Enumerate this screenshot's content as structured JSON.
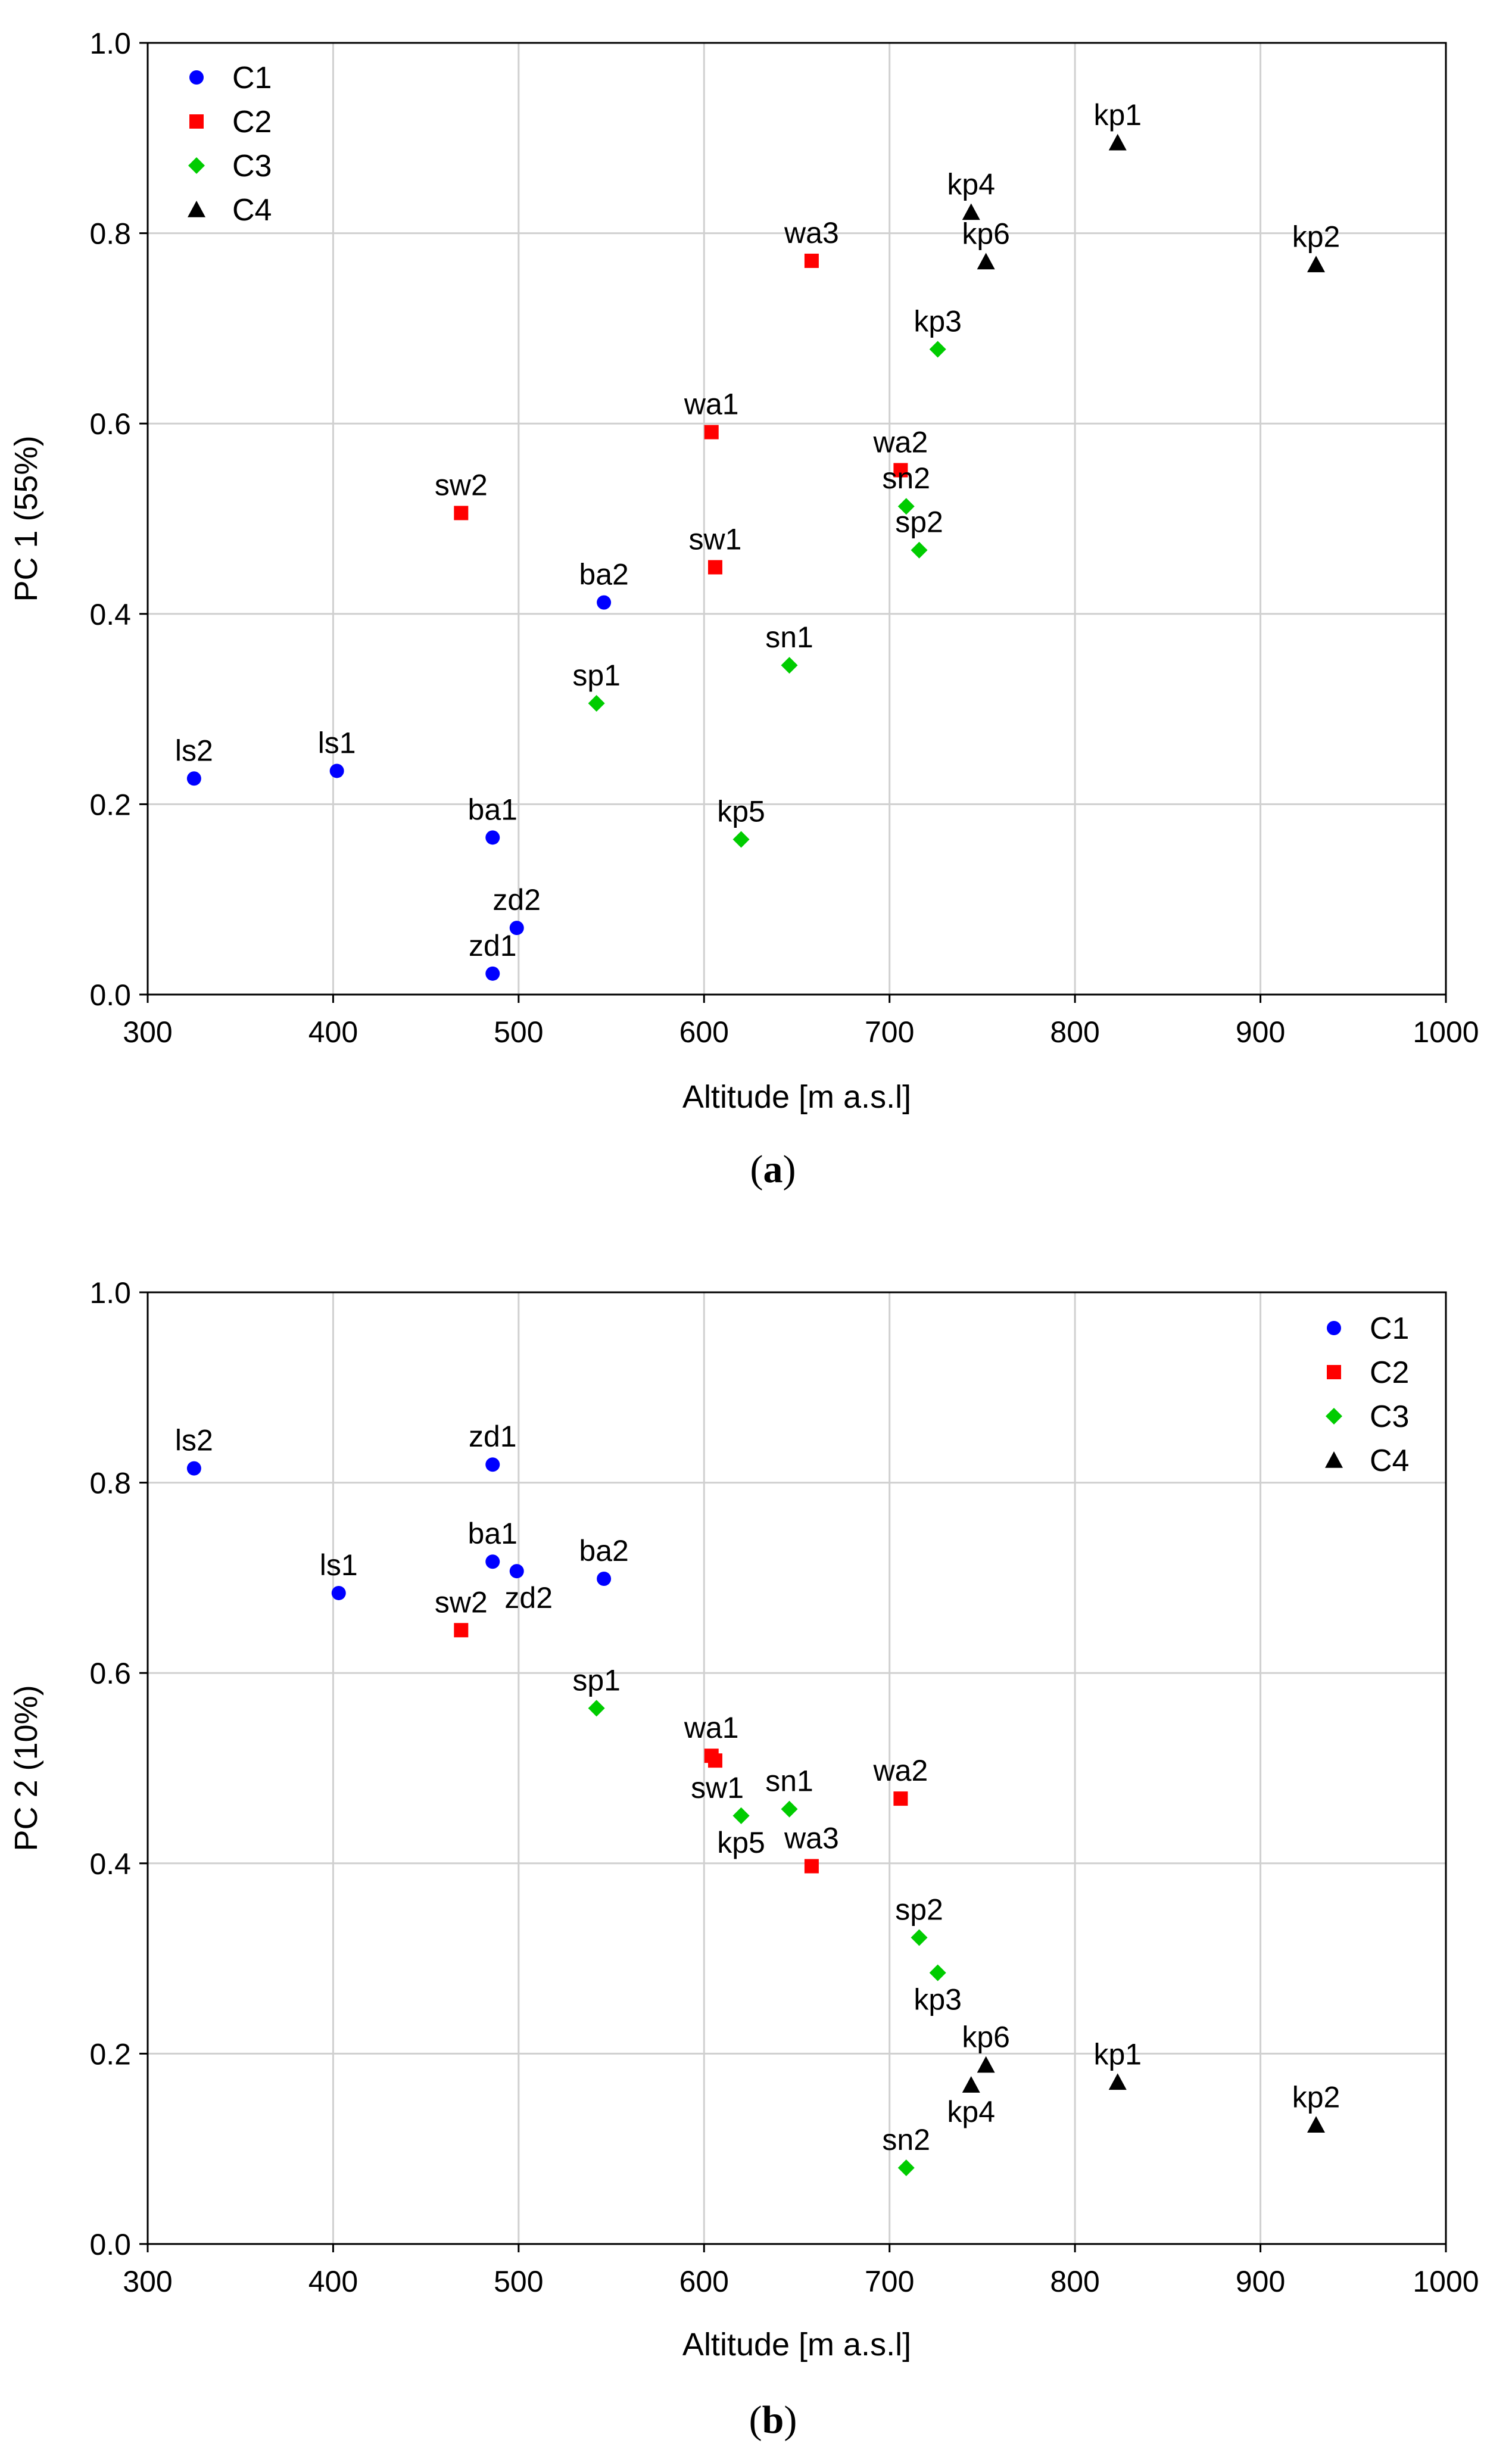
{
  "colors": {
    "C1": "#0000ff",
    "C2": "#ff0000",
    "C3": "#00cc00",
    "C4": "#000000",
    "grid": "#d0d0d0",
    "frame": "#000000"
  },
  "chart_data": [
    {
      "type": "scatter",
      "caption": "(a)",
      "caption_open": "(",
      "caption_letter": "a",
      "caption_close": ")",
      "xlabel": "Altitude [m a.s.l]",
      "ylabel": "PC 1 (55%)",
      "xlim": [
        300,
        1000
      ],
      "ylim": [
        0.0,
        1.0
      ],
      "xticks": [
        "300",
        "400",
        "500",
        "600",
        "700",
        "800",
        "900",
        "1000"
      ],
      "yticks": [
        "0.0",
        "0.2",
        "0.4",
        "0.6",
        "0.8",
        "1.0"
      ],
      "grid": true,
      "legend_position": "top-left",
      "legend": [
        "C1",
        "C2",
        "C3",
        "C4"
      ],
      "points": [
        {
          "label": "ls2",
          "x": 325,
          "y": 0.227,
          "group": "C1",
          "label_pos": "above"
        },
        {
          "label": "ls1",
          "x": 402,
          "y": 0.235,
          "group": "C1",
          "label_pos": "above"
        },
        {
          "label": "ba1",
          "x": 486,
          "y": 0.165,
          "group": "C1",
          "label_pos": "above"
        },
        {
          "label": "zd2",
          "x": 499,
          "y": 0.07,
          "group": "C1",
          "label_pos": "above"
        },
        {
          "label": "zd1",
          "x": 486,
          "y": 0.022,
          "group": "C1",
          "label_pos": "above"
        },
        {
          "label": "ba2",
          "x": 546,
          "y": 0.412,
          "group": "C1",
          "label_pos": "above"
        },
        {
          "label": "sw2",
          "x": 469,
          "y": 0.506,
          "group": "C2",
          "label_pos": "above"
        },
        {
          "label": "wa1",
          "x": 604,
          "y": 0.591,
          "group": "C2",
          "label_pos": "above"
        },
        {
          "label": "sw1",
          "x": 606,
          "y": 0.449,
          "group": "C2",
          "label_pos": "above"
        },
        {
          "label": "wa3",
          "x": 658,
          "y": 0.771,
          "group": "C2",
          "label_pos": "above"
        },
        {
          "label": "wa2",
          "x": 706,
          "y": 0.551,
          "group": "C2",
          "label_pos": "above"
        },
        {
          "label": "sp1",
          "x": 542,
          "y": 0.306,
          "group": "C3",
          "label_pos": "above"
        },
        {
          "label": "kp5",
          "x": 620,
          "y": 0.163,
          "group": "C3",
          "label_pos": "above"
        },
        {
          "label": "sn1",
          "x": 646,
          "y": 0.346,
          "group": "C3",
          "label_pos": "above"
        },
        {
          "label": "sn2",
          "x": 709,
          "y": 0.513,
          "group": "C3",
          "label_pos": "above"
        },
        {
          "label": "sp2",
          "x": 716,
          "y": 0.467,
          "group": "C3",
          "label_pos": "above"
        },
        {
          "label": "kp3",
          "x": 726,
          "y": 0.678,
          "group": "C3",
          "label_pos": "above"
        },
        {
          "label": "kp4",
          "x": 744,
          "y": 0.822,
          "group": "C4",
          "label_pos": "above"
        },
        {
          "label": "kp6",
          "x": 752,
          "y": 0.77,
          "group": "C4",
          "label_pos": "above"
        },
        {
          "label": "kp1",
          "x": 823,
          "y": 0.895,
          "group": "C4",
          "label_pos": "above"
        },
        {
          "label": "kp2",
          "x": 930,
          "y": 0.767,
          "group": "C4",
          "label_pos": "above"
        }
      ]
    },
    {
      "type": "scatter",
      "caption": "(b)",
      "caption_open": "(",
      "caption_letter": "b",
      "caption_close": ")",
      "xlabel": "Altitude [m a.s.l]",
      "ylabel": "PC 2 (10%)",
      "xlim": [
        300,
        1000
      ],
      "ylim": [
        0.0,
        1.0
      ],
      "xticks": [
        "300",
        "400",
        "500",
        "600",
        "700",
        "800",
        "900",
        "1000"
      ],
      "yticks": [
        "0.0",
        "0.2",
        "0.4",
        "0.6",
        "0.8",
        "1.0"
      ],
      "grid": true,
      "legend_position": "top-right",
      "legend": [
        "C1",
        "C2",
        "C3",
        "C4"
      ],
      "points": [
        {
          "label": "ls2",
          "x": 325,
          "y": 0.815,
          "group": "C1",
          "label_pos": "above"
        },
        {
          "label": "ls1",
          "x": 403,
          "y": 0.684,
          "group": "C1",
          "label_pos": "above"
        },
        {
          "label": "zd1",
          "x": 486,
          "y": 0.819,
          "group": "C1",
          "label_pos": "above"
        },
        {
          "label": "ba1",
          "x": 486,
          "y": 0.717,
          "group": "C1",
          "label_pos": "above"
        },
        {
          "label": "zd2",
          "x": 499,
          "y": 0.707,
          "group": "C1",
          "label_pos": "below-right"
        },
        {
          "label": "ba2",
          "x": 546,
          "y": 0.699,
          "group": "C1",
          "label_pos": "above"
        },
        {
          "label": "sw2",
          "x": 469,
          "y": 0.645,
          "group": "C2",
          "label_pos": "above"
        },
        {
          "label": "wa1",
          "x": 604,
          "y": 0.513,
          "group": "C2",
          "label_pos": "above"
        },
        {
          "label": "sw1",
          "x": 606,
          "y": 0.508,
          "group": "C2",
          "label_pos": "hidden"
        },
        {
          "label": "wa3",
          "x": 658,
          "y": 0.397,
          "group": "C2",
          "label_pos": "above"
        },
        {
          "label": "wa2",
          "x": 706,
          "y": 0.468,
          "group": "C2",
          "label_pos": "above"
        },
        {
          "label": "sp1",
          "x": 542,
          "y": 0.563,
          "group": "C3",
          "label_pos": "above"
        },
        {
          "label": "sw1",
          "x": 620,
          "y": 0.45,
          "group": "C3",
          "label_pos": "above-left"
        },
        {
          "label": "kp5",
          "x": 620,
          "y": 0.45,
          "group": "C3",
          "label_pos": "below"
        },
        {
          "label": "sn1",
          "x": 646,
          "y": 0.457,
          "group": "C3",
          "label_pos": "above"
        },
        {
          "label": "sp2",
          "x": 716,
          "y": 0.322,
          "group": "C3",
          "label_pos": "above"
        },
        {
          "label": "kp3",
          "x": 726,
          "y": 0.285,
          "group": "C3",
          "label_pos": "below"
        },
        {
          "label": "sn2",
          "x": 709,
          "y": 0.08,
          "group": "C3",
          "label_pos": "above"
        },
        {
          "label": "kp6",
          "x": 752,
          "y": 0.188,
          "group": "C4",
          "label_pos": "above"
        },
        {
          "label": "kp4",
          "x": 744,
          "y": 0.167,
          "group": "C4",
          "label_pos": "below"
        },
        {
          "label": "kp1",
          "x": 823,
          "y": 0.17,
          "group": "C4",
          "label_pos": "above"
        },
        {
          "label": "kp2",
          "x": 930,
          "y": 0.125,
          "group": "C4",
          "label_pos": "above"
        }
      ]
    }
  ]
}
